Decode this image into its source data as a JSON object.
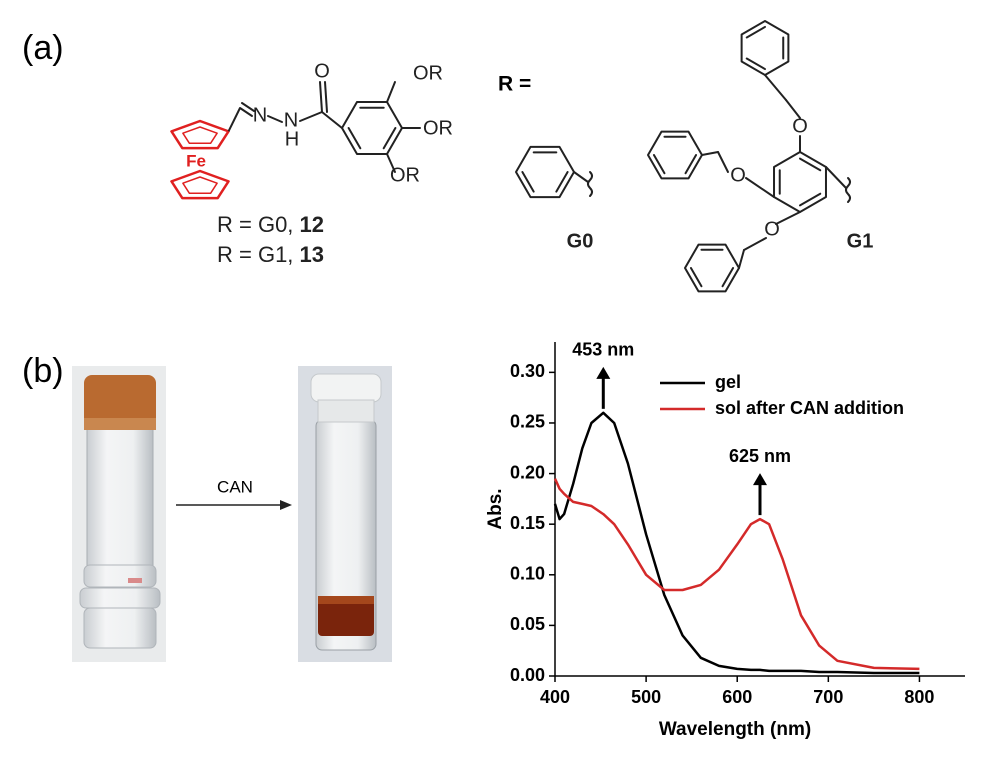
{
  "panel_a": {
    "label": "(a)",
    "compound_atoms": [
      "O",
      "N",
      "N",
      "H",
      "OR",
      "OR",
      "OR",
      "Fe"
    ],
    "captions": [
      {
        "text": "R = G0, ",
        "number": "12"
      },
      {
        "text": "R = G1, ",
        "number": "13"
      }
    ],
    "r_label": "R =",
    "substituents": [
      {
        "name": "G0"
      },
      {
        "name": "G1",
        "atoms": [
          "O",
          "O",
          "O"
        ]
      }
    ]
  },
  "panel_b": {
    "label": "(b)",
    "reagent": "CAN"
  },
  "chart_data": {
    "type": "line",
    "x_label": "Wavelength (nm)",
    "y_label": "Abs.",
    "x": [
      400,
      405,
      410,
      420,
      430,
      440,
      453,
      465,
      480,
      500,
      520,
      540,
      560,
      580,
      600,
      615,
      625,
      635,
      650,
      670,
      690,
      710,
      750,
      800
    ],
    "series": [
      {
        "name": "gel",
        "color": "#000000",
        "values": [
          0.17,
          0.155,
          0.16,
          0.19,
          0.225,
          0.25,
          0.26,
          0.25,
          0.21,
          0.14,
          0.08,
          0.04,
          0.018,
          0.01,
          0.007,
          0.006,
          0.006,
          0.005,
          0.005,
          0.005,
          0.004,
          0.004,
          0.003,
          0.003
        ]
      },
      {
        "name": "sol after CAN addition",
        "color": "#d42a2a",
        "values": [
          0.195,
          0.185,
          0.18,
          0.172,
          0.17,
          0.168,
          0.16,
          0.15,
          0.13,
          0.1,
          0.085,
          0.085,
          0.09,
          0.105,
          0.13,
          0.15,
          0.155,
          0.15,
          0.115,
          0.06,
          0.03,
          0.015,
          0.008,
          0.007
        ]
      }
    ],
    "xlim": [
      400,
      850
    ],
    "ylim": [
      0,
      0.33
    ],
    "xticks": [
      400,
      500,
      600,
      700,
      800
    ],
    "yticks": [
      {
        "value": 0,
        "label": "0.00"
      },
      {
        "value": 0.05,
        "label": "0.05"
      },
      {
        "value": 0.1,
        "label": "0.10"
      },
      {
        "value": 0.15,
        "label": "0.15"
      },
      {
        "value": 0.2,
        "label": "0.20"
      },
      {
        "value": 0.25,
        "label": "0.25"
      },
      {
        "value": 0.3,
        "label": "0.30"
      }
    ],
    "annotations": [
      {
        "text": "453 nm",
        "x": 453,
        "y": 0.26
      },
      {
        "text": "625 nm",
        "x": 625,
        "y": 0.155
      }
    ],
    "legend": "upper right",
    "grid": false
  }
}
